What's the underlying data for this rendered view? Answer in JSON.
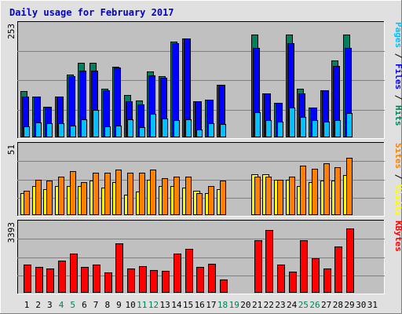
{
  "chart_data": {
    "type": "bar",
    "title": "Daily usage for February 2017",
    "days": [
      "1",
      "2",
      "3",
      "4",
      "5",
      "6",
      "7",
      "8",
      "9",
      "10",
      "11",
      "12",
      "13",
      "14",
      "15",
      "16",
      "17",
      "18",
      "19",
      "20",
      "21",
      "22",
      "23",
      "24",
      "25",
      "26",
      "27",
      "28",
      "29",
      "30",
      "31"
    ],
    "weekend_days": [
      "4",
      "5",
      "11",
      "12",
      "18",
      "19",
      "25",
      "26"
    ],
    "colors": {
      "hits": "#00805c",
      "files": "#0000ff",
      "pages": "#00c0ff",
      "visits": "#ffff00",
      "sites": "#ff8000",
      "kbytes": "#ff0000",
      "title": "#0000cc",
      "weekend_tick": "#00805c",
      "weekday_tick": "#000000",
      "plot_bg": "#c0c0c0",
      "frame_bg": "#e0e0e0"
    },
    "panels": [
      {
        "id": "hits-files-pages",
        "ymax_label": "253",
        "ymax": 253,
        "legend": [
          {
            "text": "Hits",
            "color": "#00805c"
          },
          {
            "text": " / ",
            "color": "#000000"
          },
          {
            "text": "Files",
            "color": "#0000ff"
          },
          {
            "text": " / ",
            "color": "#000000"
          },
          {
            "text": "Pages",
            "color": "#00c0ff"
          }
        ],
        "series": [
          {
            "name": "Hits",
            "color": "#00805c",
            "values": [
              103,
              91,
              69,
              91,
              140,
              167,
              167,
              109,
              159,
              95,
              82,
              147,
              137,
              215,
              222,
              81,
              84,
              118,
              0,
              0,
              230,
              98,
              77,
              230,
              109,
              66,
              106,
              172,
              230,
              0,
              0
            ]
          },
          {
            "name": "Files",
            "color": "#0000ff",
            "values": [
              91,
              91,
              69,
              91,
              137,
              150,
              150,
              105,
              156,
              81,
              73,
              139,
              134,
              211,
              222,
              81,
              84,
              118,
              0,
              0,
              200,
              98,
              77,
              210,
              98,
              66,
              106,
              160,
              200,
              0,
              0
            ]
          },
          {
            "name": "Pages",
            "color": "#00c0ff",
            "values": [
              25,
              33,
              31,
              31,
              27,
              40,
              61,
              25,
              27,
              41,
              23,
              52,
              42,
              38,
              40,
              18,
              31,
              30,
              0,
              0,
              56,
              38,
              35,
              66,
              45,
              38,
              35,
              39,
              55,
              0,
              0
            ]
          }
        ]
      },
      {
        "id": "visits-sites",
        "ymax_label": "51",
        "ymax": 51,
        "legend": [
          {
            "text": "Visits",
            "color": "#ffff00"
          },
          {
            "text": " / ",
            "color": "#000000"
          },
          {
            "text": "Sites",
            "color": "#ff8000"
          }
        ],
        "series": [
          {
            "name": "Visits",
            "color": "#ffff00",
            "values": [
              16,
              21,
              19,
              21,
              21,
              21,
              25,
              20,
              24,
              15,
              17,
              26,
              21,
              21,
              20,
              18,
              16,
              19,
              0,
              0,
              30,
              30,
              26,
              26,
              21,
              24,
              25,
              25,
              29,
              0,
              0
            ]
          },
          {
            "name": "Sites",
            "color": "#ff8000",
            "values": [
              18,
              26,
              25,
              28,
              32,
              24,
              31,
              31,
              33,
              31,
              31,
              33,
              27,
              28,
              28,
              16,
              21,
              25,
              0,
              0,
              28,
              28,
              26,
              28,
              36,
              34,
              38,
              35,
              42,
              0,
              0
            ]
          }
        ]
      },
      {
        "id": "kbytes",
        "ymax_label": "3393",
        "ymax": 3393,
        "legend": [
          {
            "text": "KBytes",
            "color": "#ff0000"
          }
        ],
        "series": [
          {
            "name": "KBytes",
            "color": "#ff0000",
            "values": [
              1370,
              1260,
              1170,
              1580,
              1900,
              1240,
              1360,
              1000,
              2420,
              1200,
              1300,
              1100,
              1080,
              1900,
              2140,
              1240,
              1410,
              660,
              0,
              0,
              2560,
              3050,
              1370,
              1030,
              2550,
              1680,
              1200,
              2260,
              3110,
              0,
              0
            ]
          }
        ]
      }
    ]
  }
}
